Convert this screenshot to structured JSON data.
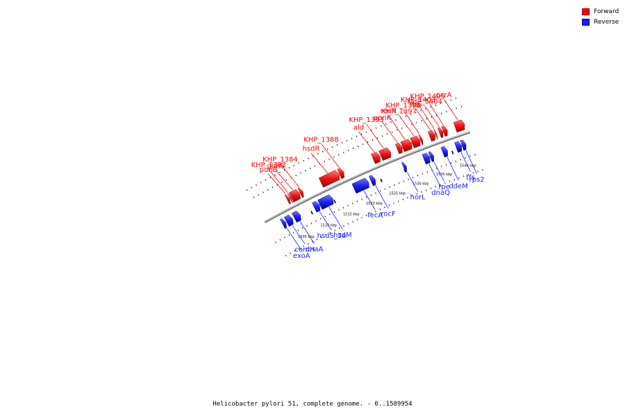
{
  "colors": {
    "forward": "#ff0000",
    "reverse": "#1a1aff",
    "backbone": "#888888"
  },
  "legend": {
    "forward_label": "Forward",
    "reverse_label": "Reverse"
  },
  "caption": "Helicobacter pylori 51, complete genome. - 0..1589954",
  "scale": {
    "unit_label": "kbp",
    "major_ticks_kbp": [
      1505,
      1510,
      1515,
      1520,
      1525,
      1530,
      1535,
      1540
    ],
    "region_start_kbp": 1501.5,
    "region_end_kbp": 1544
  },
  "genes": [
    {
      "name": "punB",
      "strand": "forward",
      "start_kbp": 1506.9,
      "end_kbp": 1507.4
    },
    {
      "name": "KHP_1382",
      "strand": "forward",
      "start_kbp": 1507.5,
      "end_kbp": 1507.7
    },
    {
      "name": "glmS",
      "strand": "forward",
      "start_kbp": 1507.8,
      "end_kbp": 1509.6
    },
    {
      "name": "KHP_1384",
      "strand": "forward",
      "start_kbp": 1509.7,
      "end_kbp": 1510.3
    },
    {
      "name": "hsdR",
      "strand": "forward",
      "start_kbp": 1514.2,
      "end_kbp": 1518.0
    },
    {
      "name": "KHP_1388",
      "strand": "forward",
      "start_kbp": 1518.1,
      "end_kbp": 1519.0
    },
    {
      "name": "ald",
      "strand": "forward",
      "start_kbp": 1525.2,
      "end_kbp": 1526.6
    },
    {
      "name": "KHP_1393",
      "strand": "forward",
      "start_kbp": 1526.8,
      "end_kbp": 1528.8
    },
    {
      "name": "ppnK",
      "strand": "forward",
      "start_kbp": 1530.2,
      "end_kbp": 1531.2
    },
    {
      "name": "recN",
      "strand": "forward",
      "start_kbp": 1531.3,
      "end_kbp": 1533.2
    },
    {
      "name": "KHP_1397",
      "strand": "forward",
      "start_kbp": 1533.3,
      "end_kbp": 1534.9
    },
    {
      "name": "KHP_1398",
      "strand": "forward",
      "start_kbp": 1535.0,
      "end_kbp": 1535.4
    },
    {
      "name": "fbp",
      "strand": "forward",
      "start_kbp": 1536.9,
      "end_kbp": 1538.0
    },
    {
      "name": "KHP_1403",
      "strand": "forward",
      "start_kbp": 1538.1,
      "end_kbp": 1538.3
    },
    {
      "name": "KHP_1404",
      "strand": "forward",
      "start_kbp": 1538.9,
      "end_kbp": 1539.6
    },
    {
      "name": "KHP_1405",
      "strand": "forward",
      "start_kbp": 1539.7,
      "end_kbp": 1540.5
    },
    {
      "name": "pcrA",
      "strand": "forward",
      "start_kbp": 1542.1,
      "end_kbp": 1544.0
    },
    {
      "name": "exoA",
      "strand": "reverse",
      "start_kbp": 1503.9,
      "end_kbp": 1504.6
    },
    {
      "name": "comH",
      "strand": "reverse",
      "start_kbp": 1504.8,
      "end_kbp": 1506.1
    },
    {
      "name": "dnaA",
      "strand": "reverse",
      "start_kbp": 1506.5,
      "end_kbp": 1507.8
    },
    {
      "name": "hsdS_3a",
      "strand": "reverse",
      "start_kbp": 1510.9,
      "end_kbp": 1512.0
    },
    {
      "name": "hsdM",
      "strand": "reverse",
      "start_kbp": 1512.1,
      "end_kbp": 1514.9
    },
    {
      "name": "fecA",
      "strand": "reverse",
      "start_kbp": 1519.5,
      "end_kbp": 1522.6
    },
    {
      "name": "rocF",
      "strand": "reverse",
      "start_kbp": 1523.1,
      "end_kbp": 1524.0
    },
    {
      "name": "horL",
      "strand": "reverse",
      "start_kbp": 1530.0,
      "end_kbp": 1530.6
    },
    {
      "name": "dnaQ",
      "strand": "reverse",
      "start_kbp": 1534.3,
      "end_kbp": 1535.5
    },
    {
      "name": "rpe",
      "strand": "reverse",
      "start_kbp": 1535.6,
      "end_kbp": 1536.3
    },
    {
      "name": "ddeM",
      "strand": "reverse",
      "start_kbp": 1538.2,
      "end_kbp": 1539.2
    },
    {
      "name": "tfs",
      "strand": "reverse",
      "start_kbp": 1541.0,
      "end_kbp": 1542.1
    },
    {
      "name": "rps2",
      "strand": "reverse",
      "start_kbp": 1542.2,
      "end_kbp": 1543.0
    }
  ]
}
